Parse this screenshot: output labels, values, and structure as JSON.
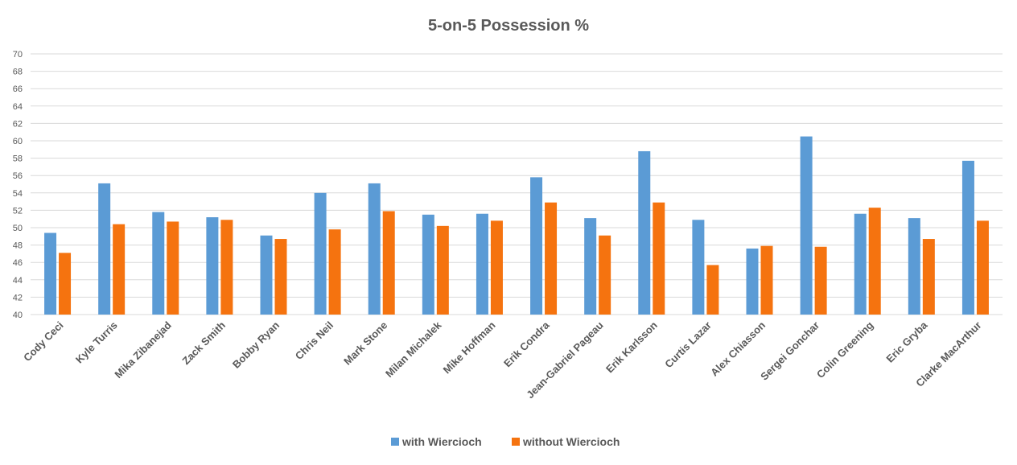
{
  "chart_data": {
    "type": "bar",
    "title": "5-on-5 Possession %",
    "xlabel": "",
    "ylabel": "",
    "ylim": [
      40,
      70
    ],
    "yticks": [
      40,
      42,
      44,
      46,
      48,
      50,
      52,
      54,
      56,
      58,
      60,
      62,
      64,
      66,
      68,
      70
    ],
    "grid": true,
    "legend_position": "bottom",
    "categories": [
      "Cody Ceci",
      "Kyle Turris",
      "Mika Zibanejad",
      "Zack Smith",
      "Bobby Ryan",
      "Chris Neil",
      "Mark Stone",
      "Milan Michalek",
      "Mike Hoffman",
      "Erik Condra",
      "Jean-Gabriel Pageau",
      "Erik Karlsson",
      "Curtis Lazar",
      "Alex Chiasson",
      "Sergei Gonchar",
      "Colin Greening",
      "Eric Gryba",
      "Clarke MacArthur"
    ],
    "series": [
      {
        "name": "with Wiercioch",
        "color": "#5b9bd5",
        "values": [
          49.4,
          55.1,
          51.8,
          51.2,
          49.1,
          54.0,
          55.1,
          51.5,
          51.6,
          55.8,
          51.1,
          58.8,
          50.9,
          47.6,
          60.5,
          51.6,
          51.1,
          57.7
        ]
      },
      {
        "name": "without Wiercioch",
        "color": "#f5730f",
        "values": [
          47.1,
          50.4,
          50.7,
          50.9,
          48.7,
          49.8,
          51.9,
          50.2,
          50.8,
          52.9,
          49.1,
          52.9,
          45.7,
          47.9,
          47.8,
          52.3,
          48.7,
          50.8
        ]
      }
    ]
  }
}
